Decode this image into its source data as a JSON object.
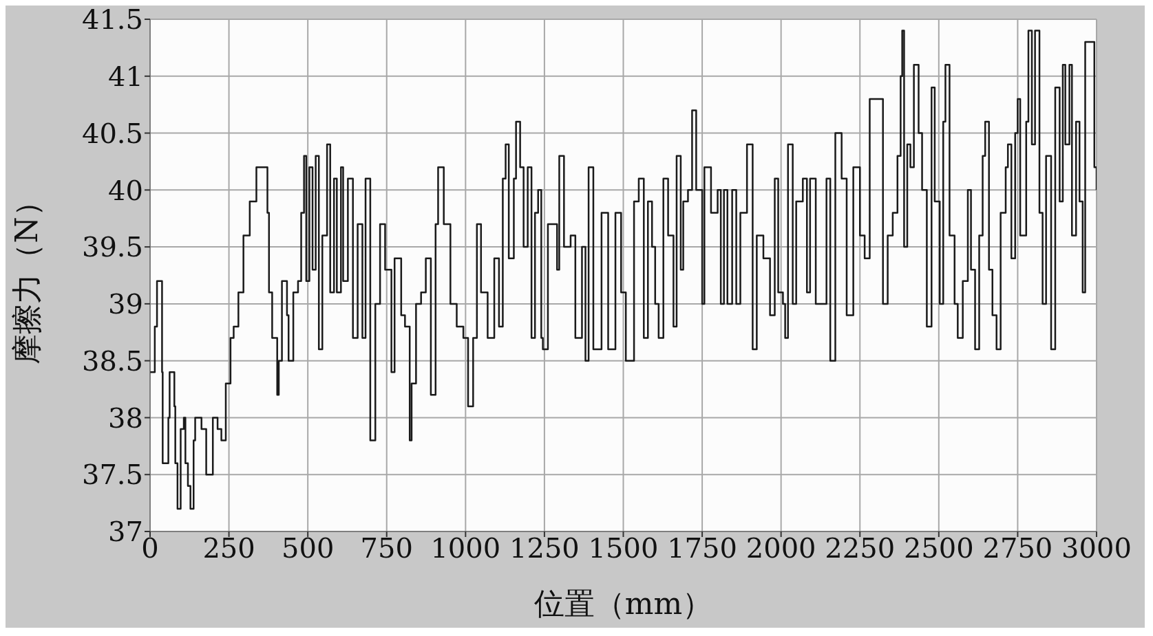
{
  "chart_data": {
    "type": "step",
    "xlabel": "位置（mm）",
    "ylabel": "摩擦力（N）",
    "xlim": [
      0,
      3000
    ],
    "xticks": [
      0,
      250,
      500,
      750,
      1000,
      1250,
      1500,
      1750,
      2000,
      2250,
      2500,
      2750,
      3000
    ],
    "ylim": [
      37,
      41.5
    ],
    "yticks": [
      37,
      37.5,
      38,
      38.5,
      39,
      39.5,
      40,
      40.5,
      41,
      41.5
    ],
    "grid": true,
    "marker": "none",
    "line_style": "solid",
    "series": [
      {
        "color": "#1a1a1a",
        "x": [
          0,
          15,
          22,
          38,
          40,
          58,
          62,
          77,
          80,
          87,
          97,
          107,
          112,
          120,
          128,
          138,
          143,
          163,
          178,
          199,
          214,
          226,
          240,
          255,
          265,
          280,
          296,
          316,
          337,
          372,
          377,
          387,
          403,
          408,
          418,
          434,
          439,
          454,
          469,
          479,
          488,
          495,
          505,
          515,
          525,
          535,
          546,
          561,
          571,
          583,
          592,
          605,
          612,
          627,
          643,
          658,
          673,
          683,
          698,
          714,
          729,
          745,
          765,
          775,
          796,
          808,
          823,
          829,
          843,
          859,
          874,
          890,
          905,
          913,
          931,
          952,
          972,
          993,
          1008,
          1024,
          1036,
          1049,
          1070,
          1091,
          1106,
          1118,
          1127,
          1137,
          1153,
          1160,
          1173,
          1184,
          1197,
          1209,
          1220,
          1230,
          1240,
          1245,
          1261,
          1276,
          1290,
          1297,
          1312,
          1333,
          1348,
          1369,
          1380,
          1390,
          1405,
          1431,
          1452,
          1475,
          1493,
          1508,
          1534,
          1549,
          1565,
          1578,
          1591,
          1601,
          1612,
          1627,
          1642,
          1659,
          1669,
          1682,
          1690,
          1705,
          1718,
          1731,
          1750,
          1757,
          1778,
          1799,
          1809,
          1819,
          1830,
          1845,
          1858,
          1871,
          1892,
          1910,
          1923,
          1944,
          1965,
          1980,
          1991,
          2006,
          2013,
          2022,
          2037,
          2048,
          2069,
          2082,
          2092,
          2110,
          2130,
          2144,
          2156,
          2172,
          2192,
          2208,
          2229,
          2250,
          2265,
          2281,
          2312,
          2323,
          2338,
          2354,
          2369,
          2379,
          2384,
          2390,
          2400,
          2410,
          2421,
          2436,
          2447,
          2462,
          2477,
          2487,
          2503,
          2514,
          2521,
          2534,
          2550,
          2560,
          2576,
          2592,
          2602,
          2615,
          2628,
          2639,
          2647,
          2659,
          2670,
          2683,
          2696,
          2712,
          2719,
          2730,
          2742,
          2750,
          2758,
          2777,
          2784,
          2795,
          2805,
          2819,
          2829,
          2840,
          2856,
          2869,
          2883,
          2893,
          2901,
          2914,
          2922,
          2935,
          2946,
          2956,
          2964,
          2977,
          2993,
          3000
        ],
        "values": [
          38.4,
          38.8,
          39.2,
          38.4,
          37.6,
          38.0,
          38.4,
          38.1,
          37.6,
          37.2,
          37.9,
          38.0,
          37.6,
          37.4,
          37.2,
          37.8,
          38.0,
          37.9,
          37.5,
          38.0,
          37.9,
          37.8,
          38.3,
          38.7,
          38.8,
          39.1,
          39.6,
          39.9,
          40.2,
          39.8,
          39.1,
          38.7,
          38.2,
          38.5,
          39.2,
          38.9,
          38.5,
          39.1,
          39.2,
          39.8,
          40.3,
          39.2,
          40.2,
          39.3,
          40.3,
          38.6,
          39.6,
          40.4,
          39.1,
          40.1,
          39.1,
          40.2,
          39.2,
          40.1,
          38.7,
          39.7,
          38.7,
          40.1,
          37.8,
          39.0,
          39.7,
          39.3,
          38.4,
          39.4,
          38.9,
          38.8,
          37.8,
          38.3,
          39.0,
          39.1,
          39.4,
          38.2,
          39.7,
          40.2,
          39.7,
          39.0,
          38.8,
          38.7,
          38.1,
          38.7,
          39.7,
          39.1,
          38.7,
          39.4,
          38.8,
          40.1,
          40.4,
          39.4,
          40.1,
          40.6,
          40.2,
          39.5,
          40.2,
          38.7,
          39.8,
          40.0,
          38.7,
          38.6,
          39.7,
          39.7,
          39.3,
          40.3,
          39.5,
          39.6,
          38.7,
          39.5,
          38.5,
          40.2,
          38.6,
          39.8,
          38.6,
          39.8,
          39.1,
          38.5,
          39.9,
          40.1,
          38.7,
          39.9,
          39.5,
          39.0,
          38.7,
          40.1,
          39.6,
          38.8,
          40.3,
          39.3,
          39.9,
          40.0,
          40.7,
          40.0,
          39.0,
          40.2,
          39.8,
          40.0,
          39.0,
          40.0,
          39.0,
          40.0,
          39.0,
          39.8,
          40.4,
          38.6,
          39.6,
          39.4,
          38.9,
          40.1,
          39.1,
          39.0,
          38.7,
          40.4,
          39.0,
          39.9,
          40.1,
          39.1,
          40.1,
          39.0,
          39.0,
          40.1,
          38.5,
          40.5,
          40.1,
          38.9,
          40.2,
          39.6,
          39.4,
          40.8,
          40.8,
          39.0,
          39.6,
          39.8,
          40.3,
          41.0,
          41.4,
          39.5,
          40.4,
          40.2,
          41.1,
          40.5,
          40.0,
          38.8,
          40.9,
          39.9,
          39.0,
          40.6,
          41.1,
          39.6,
          39.0,
          38.7,
          39.2,
          40.0,
          39.3,
          38.6,
          39.6,
          40.3,
          40.6,
          39.3,
          38.9,
          38.6,
          39.8,
          40.2,
          40.4,
          39.4,
          40.5,
          40.8,
          39.6,
          40.6,
          41.4,
          40.4,
          41.4,
          39.8,
          39.0,
          40.3,
          38.6,
          40.9,
          39.9,
          41.1,
          40.4,
          41.1,
          39.6,
          40.6,
          39.9,
          39.1,
          41.3,
          41.3,
          40.2,
          40.0
        ]
      }
    ]
  }
}
